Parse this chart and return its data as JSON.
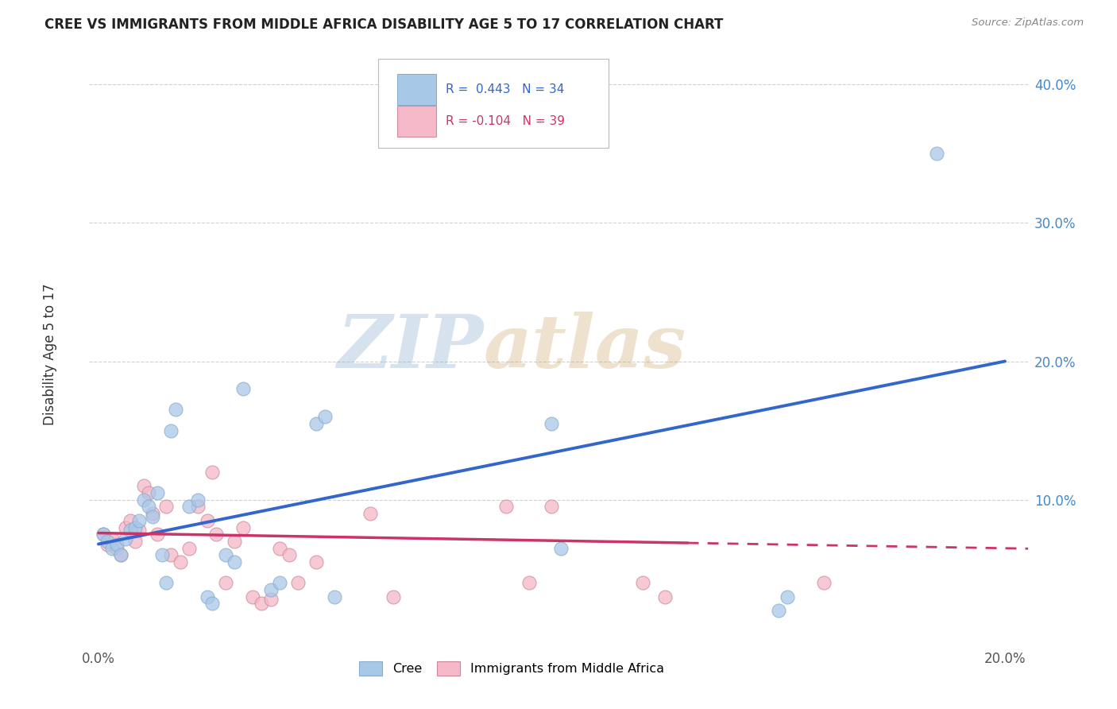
{
  "title": "CREE VS IMMIGRANTS FROM MIDDLE AFRICA DISABILITY AGE 5 TO 17 CORRELATION CHART",
  "source": "Source: ZipAtlas.com",
  "ylabel": "Disability Age 5 to 17",
  "xlim": [
    -0.002,
    0.205
  ],
  "ylim": [
    -0.005,
    0.425
  ],
  "xticks": [
    0.0,
    0.05,
    0.1,
    0.15,
    0.2
  ],
  "yticks": [
    0.1,
    0.2,
    0.3,
    0.4
  ],
  "xticklabels": [
    "0.0%",
    "",
    "",
    "",
    "20.0%"
  ],
  "yticklabels": [
    "10.0%",
    "20.0%",
    "30.0%",
    "40.0%"
  ],
  "cree_R": 0.443,
  "cree_N": 34,
  "imm_R": -0.104,
  "imm_N": 39,
  "cree_color": "#a8c8e8",
  "cree_edge_color": "#88aacc",
  "cree_line_color": "#3366cc",
  "imm_color": "#f4b8c8",
  "imm_edge_color": "#cc8899",
  "imm_line_color": "#cc3366",
  "watermark_zip": "ZIP",
  "watermark_atlas": "atlas",
  "blue_line_x0": 0.0,
  "blue_line_y0": 0.068,
  "blue_line_x1": 0.2,
  "blue_line_y1": 0.2,
  "pink_line_x0": 0.0,
  "pink_line_y0": 0.076,
  "pink_line_x1": 0.2,
  "pink_line_y1": 0.065,
  "cree_x": [
    0.001,
    0.002,
    0.003,
    0.004,
    0.005,
    0.006,
    0.007,
    0.008,
    0.009,
    0.01,
    0.011,
    0.012,
    0.013,
    0.014,
    0.015,
    0.016,
    0.017,
    0.02,
    0.022,
    0.024,
    0.025,
    0.028,
    0.03,
    0.032,
    0.038,
    0.04,
    0.048,
    0.05,
    0.052,
    0.1,
    0.102,
    0.15,
    0.152,
    0.185
  ],
  "cree_y": [
    0.075,
    0.07,
    0.065,
    0.068,
    0.06,
    0.072,
    0.078,
    0.08,
    0.085,
    0.1,
    0.095,
    0.088,
    0.105,
    0.06,
    0.04,
    0.15,
    0.165,
    0.095,
    0.1,
    0.03,
    0.025,
    0.06,
    0.055,
    0.18,
    0.035,
    0.04,
    0.155,
    0.16,
    0.03,
    0.155,
    0.065,
    0.02,
    0.03,
    0.35
  ],
  "imm_x": [
    0.001,
    0.002,
    0.003,
    0.004,
    0.005,
    0.006,
    0.007,
    0.008,
    0.009,
    0.01,
    0.011,
    0.012,
    0.013,
    0.015,
    0.016,
    0.018,
    0.02,
    0.022,
    0.024,
    0.025,
    0.026,
    0.028,
    0.03,
    0.032,
    0.034,
    0.036,
    0.038,
    0.04,
    0.042,
    0.044,
    0.048,
    0.06,
    0.065,
    0.09,
    0.095,
    0.1,
    0.12,
    0.125,
    0.16
  ],
  "imm_y": [
    0.075,
    0.068,
    0.072,
    0.065,
    0.06,
    0.08,
    0.085,
    0.07,
    0.078,
    0.11,
    0.105,
    0.09,
    0.075,
    0.095,
    0.06,
    0.055,
    0.065,
    0.095,
    0.085,
    0.12,
    0.075,
    0.04,
    0.07,
    0.08,
    0.03,
    0.025,
    0.028,
    0.065,
    0.06,
    0.04,
    0.055,
    0.09,
    0.03,
    0.095,
    0.04,
    0.095,
    0.04,
    0.03,
    0.04
  ]
}
